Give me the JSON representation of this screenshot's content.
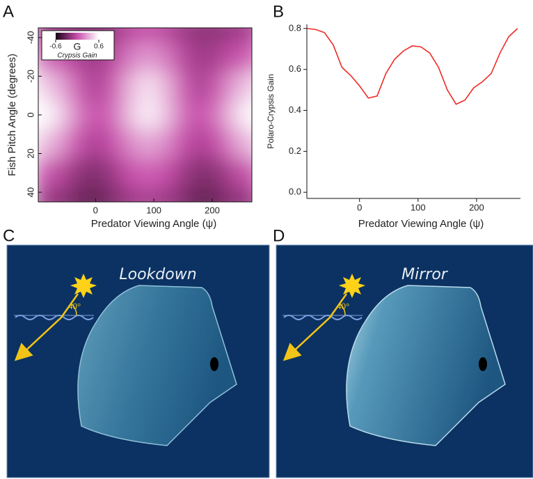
{
  "panel_labels": [
    "A",
    "B",
    "C",
    "D"
  ],
  "chart_data": [
    {
      "type": "heatmap",
      "x_label": "Fish Pitch Angle (degrees)",
      "xaxis_label": "Predator Viewing Angle (ψ)",
      "x": [
        -90,
        -60,
        -30,
        0,
        30,
        60,
        90,
        120,
        150,
        180,
        210,
        240,
        270
      ],
      "y": [
        -45,
        -30,
        -15,
        0,
        15,
        30,
        45
      ],
      "values": [
        [
          -0.1,
          -0.15,
          -0.2,
          -0.2,
          -0.15,
          -0.05,
          0,
          -0.05,
          -0.15,
          -0.2,
          -0.2,
          -0.15,
          -0.1
        ],
        [
          0.1,
          0,
          -0.1,
          -0.15,
          -0.05,
          0.15,
          0.25,
          0.15,
          -0.05,
          -0.15,
          -0.1,
          0,
          0.1
        ],
        [
          0.45,
          0.3,
          0.05,
          -0.1,
          0.05,
          0.35,
          0.5,
          0.35,
          0.05,
          -0.1,
          0.05,
          0.3,
          0.45
        ],
        [
          0.6,
          0.45,
          0.15,
          0,
          0.1,
          0.4,
          0.55,
          0.4,
          0.1,
          0,
          0.15,
          0.45,
          0.6
        ],
        [
          0.4,
          0.25,
          0,
          -0.1,
          0,
          0.2,
          0.3,
          0.2,
          0,
          -0.1,
          0,
          0.25,
          0.4
        ],
        [
          0.05,
          -0.05,
          -0.2,
          -0.25,
          -0.15,
          0,
          0.05,
          0,
          -0.15,
          -0.25,
          -0.2,
          -0.05,
          0.05
        ],
        [
          -0.15,
          -0.2,
          -0.3,
          -0.35,
          -0.25,
          -0.15,
          -0.1,
          -0.15,
          -0.25,
          -0.35,
          -0.3,
          -0.2,
          -0.15
        ]
      ],
      "xlim": [
        -98,
        268
      ],
      "xticks": [
        0,
        100,
        200
      ],
      "ylim": [
        45,
        -45
      ],
      "yticks": [
        -40,
        -20,
        0,
        20,
        40
      ],
      "colorbar": {
        "label": "G",
        "title": "Crypsis Gain",
        "range": [
          -0.6,
          0.6
        ],
        "ticks": [
          -0.6,
          0.6
        ],
        "colors": [
          "#1a0014",
          "#c94fac",
          "#ffffff"
        ]
      }
    },
    {
      "type": "line",
      "x_label": "Predator Viewing Angle (ψ)",
      "y_label": "Polaro-Crypsis Gain",
      "x": [
        -90,
        -75,
        -60,
        -45,
        -30,
        -15,
        0,
        15,
        30,
        45,
        60,
        75,
        90,
        105,
        120,
        135,
        150,
        165,
        180,
        195,
        210,
        225,
        240,
        255,
        270
      ],
      "values": [
        0.8,
        0.795,
        0.78,
        0.72,
        0.61,
        0.57,
        0.52,
        0.46,
        0.47,
        0.58,
        0.65,
        0.69,
        0.715,
        0.71,
        0.68,
        0.61,
        0.5,
        0.43,
        0.45,
        0.51,
        0.54,
        0.58,
        0.68,
        0.76,
        0.8
      ],
      "color": "#ee2a24",
      "xlim": [
        -90,
        275
      ],
      "xticks": [
        0,
        100,
        200
      ],
      "ylim": [
        -0.03,
        0.82
      ],
      "yticks": [
        {
          "value": 0,
          "label": "0.0"
        },
        0.2,
        0.4,
        0.6,
        0.8
      ]
    }
  ],
  "illustrations": [
    {
      "title": "Lookdown",
      "angle_label": "40°"
    },
    {
      "title": "Mirror",
      "angle_label": "40°"
    }
  ]
}
